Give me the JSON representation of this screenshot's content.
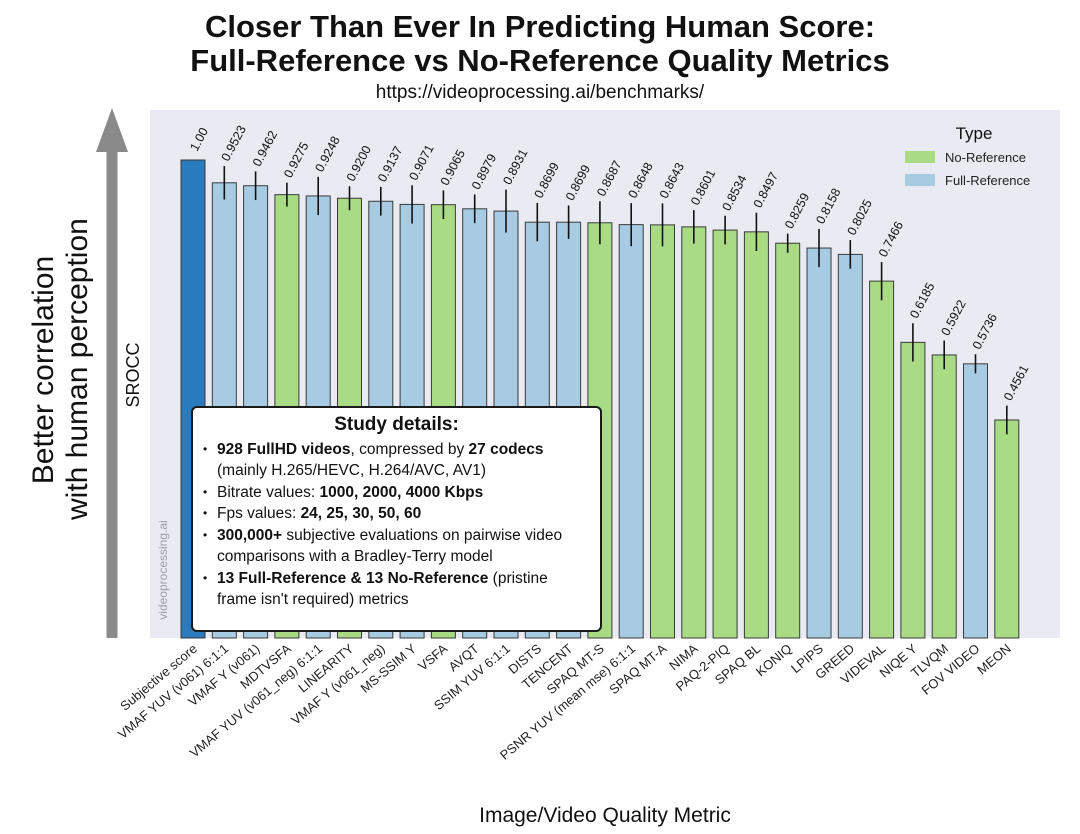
{
  "title_line1": "Closer Than Ever In Predicting Human Score:",
  "title_line2": "Full-Reference vs No-Reference Quality Metrics",
  "url": "https://videoprocessing.ai/benchmarks/",
  "side_label_line1": "Better correlation",
  "side_label_line2": "with human perception",
  "watermark": "videoprocessing.ai",
  "study_box": {
    "title": "Study details:",
    "items": [
      {
        "b1": "928 FullHD videos",
        "t1": ", compressed by ",
        "b2": "27 codecs",
        "t2": " (mainly H.265/HEVC, H.264/AVC, AV1)"
      },
      {
        "b1": "",
        "t1": "Bitrate values: ",
        "b2": "1000, 2000, 4000 Kbps",
        "t2": ""
      },
      {
        "b1": "",
        "t1": "Fps values: ",
        "b2": "24, 25, 30, 50, 60",
        "t2": ""
      },
      {
        "b1": "300,000+",
        "t1": " subjective evaluations on pairwise video comparisons with a Bradley-Terry model",
        "b2": "",
        "t2": ""
      },
      {
        "b1": "13 Full-Reference & 13 No-Reference",
        "t1": " (pristine frame isn't required) metrics",
        "b2": "",
        "t2": ""
      }
    ]
  },
  "colors": {
    "subjective": "#2a7bbd",
    "full_reference": "#a6cbe3",
    "no_reference": "#a8db84",
    "plot_bg": "#e9eaf2",
    "arrow": "#8a8a8a"
  },
  "chart_data": {
    "type": "bar",
    "title": "Closer Than Ever In Predicting Human Score: Full-Reference vs No-Reference Quality Metrics",
    "xlabel": "Image/Video Quality Metric",
    "ylabel": "SROCC",
    "ylim": [
      0,
      1.05
    ],
    "grid": false,
    "legend": {
      "title": "Type",
      "placement": "top-right",
      "entries": [
        "No-Reference",
        "Full-Reference"
      ]
    },
    "categories": [
      "Subjective score",
      "VMAF YUV (v061) 6:1:1",
      "VMAF Y (v061)",
      "MDTVSFA",
      "VMAF YUV (v061_neg) 6:1:1",
      "LINEARITY",
      "VMAF Y (v061_neg)",
      "MS-SSIM Y",
      "VSFA",
      "AVQT",
      "SSIM YUV 6:1:1",
      "DISTS",
      "TENCENT",
      "SPAQ MT-S",
      "PSNR YUV (mean mse) 6:1:1",
      "SPAQ MT-A",
      "NIMA",
      "PAQ-2-PIQ",
      "SPAQ BL",
      "KONIQ",
      "LPIPS",
      "GREED",
      "VIDEVAL",
      "NIQE Y",
      "TLVQM",
      "FOV VIDEO",
      "MEON"
    ],
    "values": [
      1.0,
      0.9523,
      0.9462,
      0.9275,
      0.9248,
      0.92,
      0.9137,
      0.9071,
      0.9065,
      0.8979,
      0.8931,
      0.8699,
      0.8699,
      0.8687,
      0.8648,
      0.8643,
      0.8601,
      0.8534,
      0.8497,
      0.8259,
      0.8158,
      0.8025,
      0.7466,
      0.6185,
      0.5922,
      0.5736,
      0.4561
    ],
    "labels": [
      "1.00",
      "0.9523",
      "0.9462",
      "0.9275",
      "0.9248",
      "0.9200",
      "0.9137",
      "0.9071",
      "0.9065",
      "0.8979",
      "0.8931",
      "0.8699",
      "0.8699",
      "0.8687",
      "0.8648",
      "0.8643",
      "0.8601",
      "0.8534",
      "0.8497",
      "0.8259",
      "0.8158",
      "0.8025",
      "0.7466",
      "0.6185",
      "0.5922",
      "0.5736",
      "0.4561"
    ],
    "types": [
      "Subjective",
      "Full-Reference",
      "Full-Reference",
      "No-Reference",
      "Full-Reference",
      "No-Reference",
      "Full-Reference",
      "Full-Reference",
      "No-Reference",
      "Full-Reference",
      "Full-Reference",
      "Full-Reference",
      "Full-Reference",
      "No-Reference",
      "Full-Reference",
      "No-Reference",
      "No-Reference",
      "No-Reference",
      "No-Reference",
      "No-Reference",
      "Full-Reference",
      "Full-Reference",
      "No-Reference",
      "No-Reference",
      "No-Reference",
      "Full-Reference",
      "No-Reference"
    ],
    "errors": [
      0,
      0.035,
      0.03,
      0.025,
      0.04,
      0.025,
      0.03,
      0.04,
      0.03,
      0.03,
      0.045,
      0.04,
      0.035,
      0.045,
      0.045,
      0.045,
      0.035,
      0.03,
      0.04,
      0.02,
      0.04,
      0.03,
      0.04,
      0.04,
      0.03,
      0.02,
      0.03
    ]
  }
}
